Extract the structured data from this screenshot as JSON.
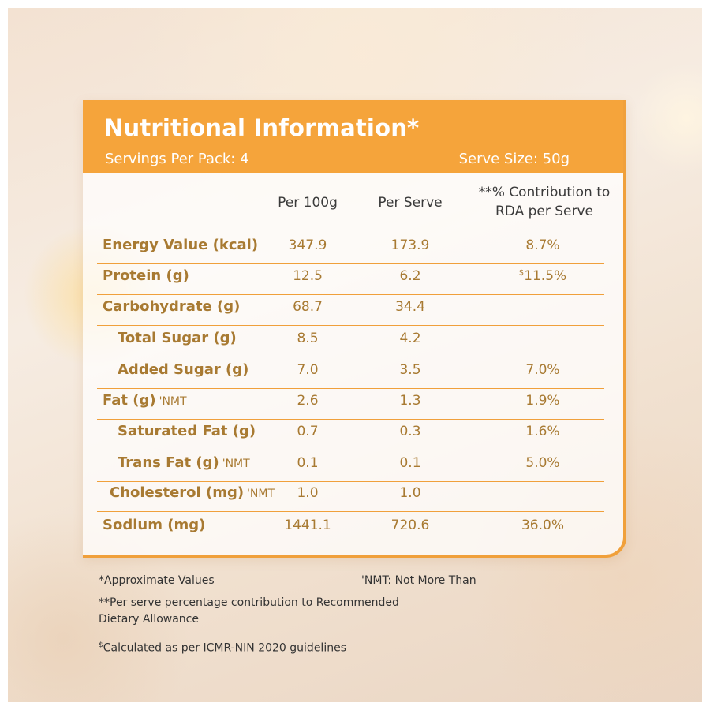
{
  "header": {
    "title": "Nutritional Information*",
    "servings": "Servings Per Pack: 4",
    "serve_size": "Serve Size: 50g"
  },
  "columns": {
    "per100": "Per 100g",
    "perServe": "Per Serve",
    "rda_line1": "**% Contribution to",
    "rda_line2": "RDA per Serve"
  },
  "rows": [
    {
      "label": "Energy Value (kcal)",
      "nmt": "",
      "per100": "347.9",
      "perServe": "173.9",
      "rda_prefix": "",
      "rda": "8.7%"
    },
    {
      "label": "Protein (g)",
      "nmt": "",
      "per100": "12.5",
      "perServe": "6.2",
      "rda_prefix": "$",
      "rda": "11.5%"
    },
    {
      "label": "Carbohydrate (g)",
      "nmt": "",
      "per100": "68.7",
      "perServe": "34.4",
      "rda_prefix": "",
      "rda": ""
    },
    {
      "label": "Total Sugar (g)",
      "nmt": "",
      "per100": "8.5",
      "perServe": "4.2",
      "rda_prefix": "",
      "rda": ""
    },
    {
      "label": "Added Sugar (g)",
      "nmt": "",
      "per100": "7.0",
      "perServe": "3.5",
      "rda_prefix": "",
      "rda": "7.0%"
    },
    {
      "label": "Fat (g)",
      "nmt": "'NMT",
      "per100": "2.6",
      "perServe": "1.3",
      "rda_prefix": "",
      "rda": "1.9%"
    },
    {
      "label": "Saturated Fat (g)",
      "nmt": "",
      "per100": "0.7",
      "perServe": "0.3",
      "rda_prefix": "",
      "rda": "1.6%"
    },
    {
      "label": "Trans Fat (g)",
      "nmt": "'NMT",
      "per100": "0.1",
      "perServe": "0.1",
      "rda_prefix": "",
      "rda": "5.0%"
    },
    {
      "label": "Cholesterol (mg)",
      "nmt": "'NMT",
      "per100": "1.0",
      "perServe": "1.0",
      "rda_prefix": "",
      "rda": ""
    },
    {
      "label": "Sodium (mg)",
      "nmt": "",
      "per100": "1441.1",
      "perServe": "720.6",
      "rda_prefix": "",
      "rda": "36.0%"
    }
  ],
  "footer": {
    "approx": "*Approximate Values",
    "nmt": "'NMT: Not More Than",
    "rda_note_line1": "**Per serve percentage contribution to Recommended",
    "rda_note_line2": "Dietary Allowance",
    "calc_prefix": "$",
    "calc": "Calculated as per ICMR-NIN 2020 guidelines"
  }
}
